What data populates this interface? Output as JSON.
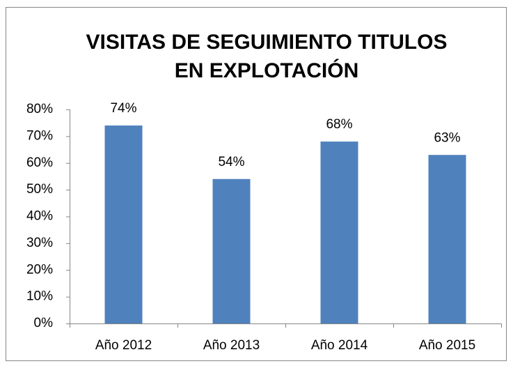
{
  "chart_data": {
    "type": "bar",
    "title": [
      "VISITAS DE SEGUIMIENTO TITULOS",
      "EN EXPLOTACIÓN"
    ],
    "categories": [
      "Año 2012",
      "Año 2013",
      "Año 2014",
      "Año 2015"
    ],
    "values": [
      74,
      54,
      68,
      63
    ],
    "value_labels": [
      "74%",
      "54%",
      "68%",
      "63%"
    ],
    "color": "#4f81bd",
    "ylim": [
      0,
      80
    ],
    "yticks": [
      {
        "value": 0,
        "label": "0%"
      },
      {
        "value": 10,
        "label": "10%"
      },
      {
        "value": 20,
        "label": "20%"
      },
      {
        "value": 30,
        "label": "30%"
      },
      {
        "value": 40,
        "label": "40%"
      },
      {
        "value": 50,
        "label": "50%"
      },
      {
        "value": 60,
        "label": "60%"
      },
      {
        "value": 70,
        "label": "70%"
      },
      {
        "value": 80,
        "label": "80%"
      }
    ],
    "grid": false
  }
}
